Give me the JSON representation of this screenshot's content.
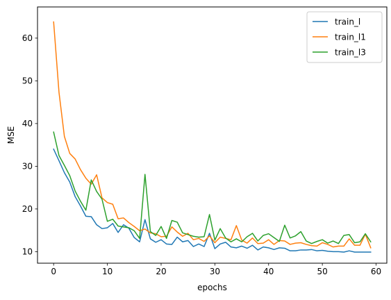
{
  "chart_data": {
    "type": "line",
    "title": "",
    "xlabel": "epochs",
    "ylabel": "MSE",
    "xlim": [
      -3,
      62
    ],
    "ylim": [
      7.3,
      67.3
    ],
    "xticks": [
      0,
      10,
      20,
      30,
      40,
      50,
      60
    ],
    "yticks": [
      10,
      20,
      30,
      40,
      50,
      60
    ],
    "legend_position": "top-right",
    "grid": false,
    "x": [
      0,
      1,
      2,
      3,
      4,
      5,
      6,
      7,
      8,
      9,
      10,
      11,
      12,
      13,
      14,
      15,
      16,
      17,
      18,
      19,
      20,
      21,
      22,
      23,
      24,
      25,
      26,
      27,
      28,
      29,
      30,
      31,
      32,
      33,
      34,
      35,
      36,
      37,
      38,
      39,
      40,
      41,
      42,
      43,
      44,
      45,
      46,
      47,
      48,
      49,
      50,
      51,
      52,
      53,
      54,
      55,
      56,
      57,
      58,
      59
    ],
    "series": [
      {
        "name": "train_l",
        "color": "#1f77b4",
        "values": [
          34.0,
          31.3,
          28.5,
          26.3,
          22.9,
          20.7,
          18.3,
          18.2,
          16.3,
          15.4,
          15.6,
          16.6,
          14.5,
          16.3,
          15.5,
          13.3,
          12.3,
          17.5,
          13.0,
          12.2,
          12.8,
          11.8,
          11.7,
          13.4,
          12.3,
          12.6,
          11.2,
          11.8,
          11.2,
          14.3,
          10.7,
          11.8,
          12.2,
          11.1,
          10.9,
          11.3,
          10.8,
          11.5,
          10.4,
          11.1,
          10.9,
          10.5,
          10.9,
          10.8,
          10.2,
          10.2,
          10.4,
          10.4,
          10.5,
          10.2,
          10.3,
          10.1,
          10.0,
          10.0,
          9.9,
          10.2,
          9.9,
          9.9,
          9.9,
          9.9
        ]
      },
      {
        "name": "train_l1",
        "color": "#ff7f0e",
        "values": [
          63.8,
          47.3,
          37.0,
          33.0,
          31.7,
          29.2,
          27.2,
          25.8,
          28.0,
          22.6,
          21.5,
          21.1,
          17.7,
          17.9,
          16.8,
          15.9,
          14.9,
          15.3,
          14.4,
          14.2,
          13.5,
          13.6,
          15.8,
          14.6,
          13.6,
          14.3,
          12.8,
          13.1,
          12.4,
          13.7,
          12.1,
          13.4,
          13.1,
          12.8,
          16.1,
          12.7,
          12.0,
          13.2,
          11.9,
          12.0,
          12.8,
          11.7,
          12.6,
          12.5,
          11.7,
          12.0,
          12.1,
          11.7,
          11.4,
          11.3,
          12.1,
          11.7,
          11.1,
          11.3,
          11.3,
          13.0,
          11.5,
          11.5,
          14.1,
          10.9
        ]
      },
      {
        "name": "train_l3",
        "color": "#2ca02c",
        "values": [
          38.0,
          32.5,
          30.2,
          27.8,
          24.2,
          21.8,
          19.7,
          26.8,
          24.1,
          22.3,
          17.1,
          17.6,
          16.0,
          15.8,
          15.6,
          14.9,
          13.1,
          28.1,
          14.7,
          13.8,
          15.9,
          13.1,
          17.3,
          16.9,
          14.4,
          14.0,
          13.6,
          13.4,
          13.5,
          18.7,
          12.7,
          15.4,
          13.2,
          12.3,
          13.0,
          12.3,
          13.5,
          14.3,
          12.5,
          13.8,
          14.2,
          13.3,
          12.4,
          16.2,
          13.2,
          13.7,
          14.7,
          12.5,
          11.9,
          12.4,
          12.8,
          12.0,
          12.5,
          11.9,
          13.8,
          14.0,
          12.1,
          12.3,
          14.2,
          12.3
        ]
      }
    ]
  }
}
